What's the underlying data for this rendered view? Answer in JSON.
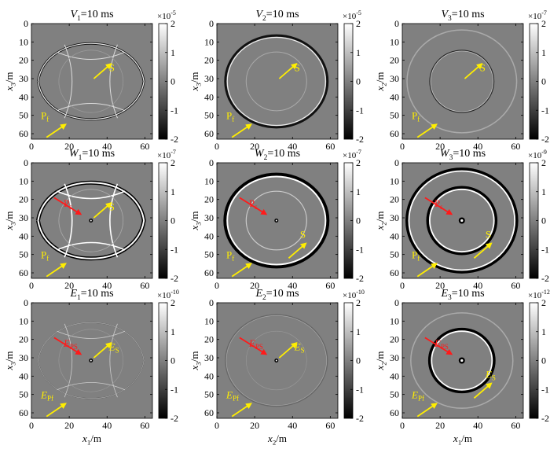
{
  "figure": {
    "panels": [
      {
        "id": "V1",
        "title_main": "V",
        "title_sub": "1",
        "title_rest": "=10 ms",
        "cbar_exp": "-5",
        "ylabel_main": "x",
        "ylabel_sub": "3",
        "ylabel_unit": "/m",
        "xlabel_main": "",
        "xlabel_sub": "",
        "xlabel_unit": "",
        "cbar_ticks": [
          "2",
          "1",
          "0",
          "-1",
          "-2"
        ],
        "pattern": "VH",
        "labels": [
          {
            "text": "S",
            "sub": "",
            "color": "yellow"
          },
          {
            "text": "P",
            "sub": "f",
            "color": "yellow"
          }
        ]
      },
      {
        "id": "V2",
        "title_main": "V",
        "title_sub": "2",
        "title_rest": "=10 ms",
        "cbar_exp": "-5",
        "ylabel_main": "x",
        "ylabel_sub": "3",
        "ylabel_unit": "/m",
        "xlabel_main": "",
        "xlabel_sub": "",
        "xlabel_unit": "",
        "cbar_ticks": [
          "2",
          "1",
          "0",
          "-1",
          "-2"
        ],
        "pattern": "VV",
        "labels": [
          {
            "text": "S",
            "sub": "",
            "color": "yellow"
          },
          {
            "text": "P",
            "sub": "f",
            "color": "yellow"
          }
        ]
      },
      {
        "id": "V3",
        "title_main": "V",
        "title_sub": "3",
        "title_rest": "=10 ms",
        "cbar_exp": "-7",
        "ylabel_main": "x",
        "ylabel_sub": "2",
        "ylabel_unit": "/m",
        "xlabel_main": "",
        "xlabel_sub": "",
        "xlabel_unit": "",
        "cbar_ticks": [
          "2",
          "1",
          "0",
          "-1",
          "-2"
        ],
        "pattern": "V3",
        "labels": [
          {
            "text": "S",
            "sub": "",
            "color": "yellow"
          },
          {
            "text": "P",
            "sub": "f",
            "color": "yellow"
          }
        ]
      },
      {
        "id": "W1",
        "title_main": "W",
        "title_sub": "1",
        "title_rest": "=10 ms",
        "cbar_exp": "-7",
        "ylabel_main": "x",
        "ylabel_sub": "3",
        "ylabel_unit": "/m",
        "xlabel_main": "",
        "xlabel_sub": "",
        "xlabel_unit": "",
        "cbar_ticks": [
          "2",
          "1",
          "0",
          "-1",
          "-2"
        ],
        "pattern": "WH",
        "labels": [
          {
            "text": "P",
            "sub": "s",
            "color": "red"
          },
          {
            "text": "S",
            "sub": "",
            "color": "yellow"
          },
          {
            "text": "P",
            "sub": "f",
            "color": "yellow"
          }
        ]
      },
      {
        "id": "W2",
        "title_main": "W",
        "title_sub": "2",
        "title_rest": "=10 ms",
        "cbar_exp": "-7",
        "ylabel_main": "x",
        "ylabel_sub": "3",
        "ylabel_unit": "/m",
        "xlabel_main": "",
        "xlabel_sub": "",
        "xlabel_unit": "",
        "cbar_ticks": [
          "2",
          "1",
          "0",
          "-1",
          "-2"
        ],
        "pattern": "WV",
        "labels": [
          {
            "text": "P",
            "sub": "s",
            "color": "red"
          },
          {
            "text": "S",
            "sub": "",
            "color": "yellow"
          },
          {
            "text": "P",
            "sub": "f",
            "color": "yellow"
          }
        ]
      },
      {
        "id": "W3",
        "title_main": "W",
        "title_sub": "3",
        "title_rest": "=10 ms",
        "cbar_exp": "-9",
        "ylabel_main": "x",
        "ylabel_sub": "2",
        "ylabel_unit": "/m",
        "xlabel_main": "",
        "xlabel_sub": "",
        "xlabel_unit": "",
        "cbar_ticks": [
          "2",
          "1",
          "0",
          "-1",
          "-2"
        ],
        "pattern": "W3",
        "labels": [
          {
            "text": "P",
            "sub": "s",
            "color": "red"
          },
          {
            "text": "S",
            "sub": "",
            "color": "yellow"
          },
          {
            "text": "P",
            "sub": "f",
            "color": "yellow"
          }
        ]
      },
      {
        "id": "E1",
        "title_main": "E",
        "title_sub": "1",
        "title_rest": "=10 ms",
        "cbar_exp": "-10",
        "ylabel_main": "x",
        "ylabel_sub": "3",
        "ylabel_unit": "/m",
        "xlabel_main": "x",
        "xlabel_sub": "1",
        "xlabel_unit": "/m",
        "cbar_ticks": [
          "2",
          "1",
          "0",
          "-1",
          "-2"
        ],
        "pattern": "EH",
        "labels": [
          {
            "text": "E",
            "sub": "PS",
            "color": "red"
          },
          {
            "text": "E",
            "sub": "S",
            "color": "yellow"
          },
          {
            "text": "E",
            "sub": "Pf",
            "color": "yellow"
          }
        ]
      },
      {
        "id": "E2",
        "title_main": "E",
        "title_sub": "2",
        "title_rest": "=10 ms",
        "cbar_exp": "-10",
        "ylabel_main": "x",
        "ylabel_sub": "3",
        "ylabel_unit": "/m",
        "xlabel_main": "x",
        "xlabel_sub": "2",
        "xlabel_unit": "/m",
        "cbar_ticks": [
          "2",
          "1",
          "0",
          "-1",
          "-2"
        ],
        "pattern": "EV",
        "labels": [
          {
            "text": "E",
            "sub": "PS",
            "color": "red"
          },
          {
            "text": "E",
            "sub": "S",
            "color": "yellow"
          },
          {
            "text": "E",
            "sub": "Pf",
            "color": "yellow"
          }
        ]
      },
      {
        "id": "E3",
        "title_main": "E",
        "title_sub": "3",
        "title_rest": "=10 ms",
        "cbar_exp": "-12",
        "ylabel_main": "x",
        "ylabel_sub": "2",
        "ylabel_unit": "/m",
        "xlabel_main": "x",
        "xlabel_sub": "1",
        "xlabel_unit": "/m",
        "cbar_ticks": [
          "2",
          "1",
          "0",
          "-1",
          "-2"
        ],
        "pattern": "E3",
        "labels": [
          {
            "text": "E",
            "sub": "PS",
            "color": "red"
          },
          {
            "text": "E",
            "sub": "S",
            "color": "yellow"
          },
          {
            "text": "E",
            "sub": "Pf",
            "color": "yellow"
          }
        ]
      }
    ],
    "axis_ticks": [
      "0",
      "20",
      "40",
      "60"
    ],
    "y_ticks": [
      "0",
      "10",
      "20",
      "30",
      "40",
      "50",
      "60"
    ],
    "cbar_prefix": "×10",
    "colors": {
      "background": "#808080",
      "red": "#ff1a1a",
      "yellow": "#ffee00"
    }
  }
}
